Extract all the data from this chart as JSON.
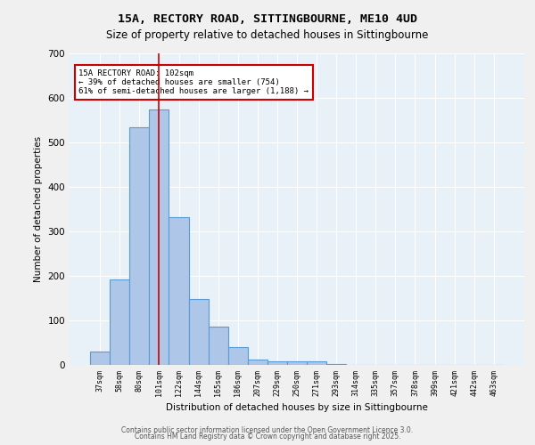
{
  "title1": "15A, RECTORY ROAD, SITTINGBOURNE, ME10 4UD",
  "title2": "Size of property relative to detached houses in Sittingbourne",
  "xlabel": "Distribution of detached houses by size in Sittingbourne",
  "ylabel": "Number of detached properties",
  "bar_color": "#aec6e8",
  "bar_edge_color": "#5b9bd5",
  "background_color": "#e8f0f8",
  "grid_color": "#ffffff",
  "categories": [
    "37sqm",
    "58sqm",
    "80sqm",
    "101sqm",
    "122sqm",
    "144sqm",
    "165sqm",
    "186sqm",
    "207sqm",
    "229sqm",
    "250sqm",
    "271sqm",
    "293sqm",
    "314sqm",
    "335sqm",
    "357sqm",
    "378sqm",
    "399sqm",
    "421sqm",
    "442sqm",
    "463sqm"
  ],
  "values": [
    30,
    193,
    535,
    575,
    333,
    148,
    87,
    40,
    12,
    8,
    8,
    8,
    3,
    1,
    0,
    0,
    0,
    0,
    0,
    0,
    0
  ],
  "property_size_index": 3,
  "property_size_label": "101sqm",
  "red_line_color": "#cc0000",
  "annotation_text": "15A RECTORY ROAD: 102sqm\n← 39% of detached houses are smaller (754)\n61% of semi-detached houses are larger (1,188) →",
  "annotation_box_color": "#ffffff",
  "annotation_border_color": "#cc0000",
  "ylim": [
    0,
    700
  ],
  "yticks": [
    0,
    100,
    200,
    300,
    400,
    500,
    600,
    700
  ],
  "footer_line1": "Contains HM Land Registry data © Crown copyright and database right 2025.",
  "footer_line2": "Contains public sector information licensed under the Open Government Licence 3.0."
}
